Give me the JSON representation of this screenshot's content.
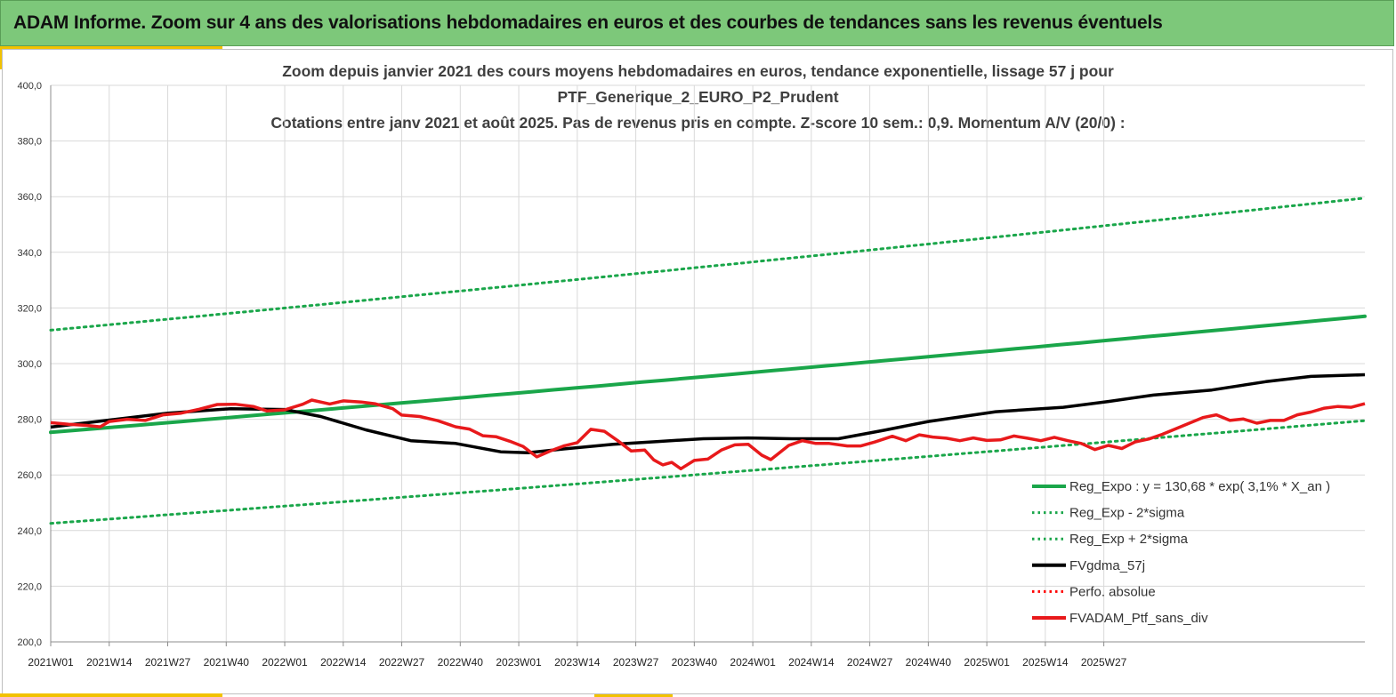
{
  "banner": {
    "title": "ADAM Informe. Zoom sur 4 ans des valorisations hebdomadaires en euros et des courbes de tendances sans les revenus éventuels"
  },
  "chart_data": {
    "type": "line",
    "title_lines": [
      "Zoom depuis janvier 2021 des cours moyens hebdomadaires  en euros, tendance exponentielle, lissage 57 j pour",
      "PTF_Generique_2_EURO_P2_Prudent",
      "Cotations entre janv 2021 et août 2025. Pas de revenus pris en compte. Z-score 10 sem.: 0,9. Momentum A/V (20/0) :"
    ],
    "ylim": [
      200,
      400
    ],
    "y_ticks": [
      "200,0",
      "220,0",
      "240,0",
      "260,0",
      "280,0",
      "300,0",
      "320,0",
      "340,0",
      "360,0",
      "380,0",
      "400,0"
    ],
    "x_ticks": [
      "2021W01",
      "2021W14",
      "2021W27",
      "2021W40",
      "2022W01",
      "2022W14",
      "2022W27",
      "2022W40",
      "2023W01",
      "2023W14",
      "2023W27",
      "2023W40",
      "2024W01",
      "2024W14",
      "2024W27",
      "2024W40",
      "2025W01",
      "2025W14",
      "2025W27"
    ],
    "week_count": 239,
    "grid": true,
    "legend_position": "bottom-right",
    "series": [
      {
        "name": "Reg_Expo : y = 130,68 * exp( 3,1% *  X_an )",
        "color": "#1aa64a",
        "style": "solid",
        "start": 275.3,
        "end": 317.0
      },
      {
        "name": "Reg_Exp - 2*sigma",
        "color": "#1aa64a",
        "style": "dotted",
        "start": 242.6,
        "end": 279.5
      },
      {
        "name": "Reg_Exp + 2*sigma",
        "color": "#1aa64a",
        "style": "dotted",
        "start": 312.0,
        "end": 359.5
      },
      {
        "name": "FVgdma_57j",
        "color": "#000000",
        "style": "solid",
        "points": [
          [
            0,
            277.2
          ],
          [
            13,
            279.7
          ],
          [
            26,
            282.2
          ],
          [
            40,
            283.8
          ],
          [
            52,
            283.5
          ],
          [
            60,
            281
          ],
          [
            70,
            276.2
          ],
          [
            80,
            272.3
          ],
          [
            90,
            271.3
          ],
          [
            100,
            268.3
          ],
          [
            106,
            268
          ],
          [
            115,
            269.5
          ],
          [
            125,
            271
          ],
          [
            135,
            272
          ],
          [
            145,
            273
          ],
          [
            155,
            273.3
          ],
          [
            165,
            273
          ],
          [
            175,
            273
          ],
          [
            185,
            276
          ],
          [
            195,
            279.2
          ],
          [
            210,
            282.7
          ],
          [
            225,
            284.3
          ],
          [
            235,
            286.4
          ],
          [
            245,
            288.7
          ],
          [
            258,
            290.5
          ],
          [
            270,
            293.5
          ],
          [
            280,
            295.4
          ],
          [
            292,
            296
          ]
        ]
      },
      {
        "name": "Perfo. absolue",
        "color": "#ff0000",
        "style": "dotted",
        "points": []
      },
      {
        "name": "FVADAM_Ptf_sans_div",
        "color": "#e8191b",
        "style": "solid",
        "points": [
          [
            0,
            278.8
          ],
          [
            4,
            278.2
          ],
          [
            8,
            277.8
          ],
          [
            11,
            277.3
          ],
          [
            13,
            279.2
          ],
          [
            17,
            280
          ],
          [
            21,
            279.6
          ],
          [
            25,
            281.6
          ],
          [
            29,
            282.2
          ],
          [
            33,
            283.6
          ],
          [
            37,
            285.3
          ],
          [
            41,
            285.4
          ],
          [
            45,
            284.6
          ],
          [
            48,
            283
          ],
          [
            52,
            283.4
          ],
          [
            56,
            285.4
          ],
          [
            58,
            286.9
          ],
          [
            62,
            285.5
          ],
          [
            65,
            286.6
          ],
          [
            69,
            286.2
          ],
          [
            72,
            285.6
          ],
          [
            76,
            283.8
          ],
          [
            78,
            281.5
          ],
          [
            82,
            281
          ],
          [
            86,
            279.5
          ],
          [
            90,
            277.3
          ],
          [
            93,
            276.5
          ],
          [
            96,
            274.1
          ],
          [
            99,
            273.7
          ],
          [
            102,
            272.1
          ],
          [
            105,
            270.2
          ],
          [
            108,
            266.5
          ],
          [
            111,
            268.6
          ],
          [
            114,
            270.4
          ],
          [
            117,
            271.6
          ],
          [
            120,
            276.4
          ],
          [
            123,
            275.7
          ],
          [
            126,
            272.3
          ],
          [
            129,
            268.6
          ],
          [
            132,
            268.9
          ],
          [
            134,
            265.4
          ],
          [
            136,
            263.6
          ],
          [
            138,
            264.5
          ],
          [
            140,
            262.2
          ],
          [
            143,
            265.2
          ],
          [
            146,
            265.7
          ],
          [
            149,
            268.9
          ],
          [
            152,
            270.8
          ],
          [
            155,
            271
          ],
          [
            158,
            267.1
          ],
          [
            160,
            265.5
          ],
          [
            164,
            270.6
          ],
          [
            167,
            272.3
          ],
          [
            170,
            271.3
          ],
          [
            173,
            271.3
          ],
          [
            177,
            270.4
          ],
          [
            180,
            270.4
          ],
          [
            183,
            271.8
          ],
          [
            187,
            273.9
          ],
          [
            190,
            272.3
          ],
          [
            193,
            274.4
          ],
          [
            196,
            273.6
          ],
          [
            199,
            273.2
          ],
          [
            202,
            272.3
          ],
          [
            205,
            273.3
          ],
          [
            208,
            272.4
          ],
          [
            211,
            272.6
          ],
          [
            214,
            274
          ],
          [
            217,
            273.2
          ],
          [
            220,
            272.3
          ],
          [
            223,
            273.5
          ],
          [
            226,
            272.3
          ],
          [
            229,
            271.3
          ],
          [
            232,
            269.1
          ],
          [
            235,
            270.6
          ],
          [
            238,
            269.5
          ],
          [
            241,
            271.9
          ],
          [
            244,
            272.9
          ],
          [
            247,
            274.6
          ],
          [
            250,
            276.6
          ],
          [
            253,
            278.6
          ],
          [
            256,
            280.6
          ],
          [
            259,
            281.6
          ],
          [
            262,
            279.6
          ],
          [
            265,
            280.1
          ],
          [
            268,
            278.6
          ],
          [
            271,
            279.6
          ],
          [
            274,
            279.6
          ],
          [
            277,
            281.6
          ],
          [
            280,
            282.6
          ],
          [
            283,
            284
          ],
          [
            286,
            284.6
          ],
          [
            289,
            284.3
          ],
          [
            292,
            285.6
          ]
        ]
      }
    ]
  }
}
